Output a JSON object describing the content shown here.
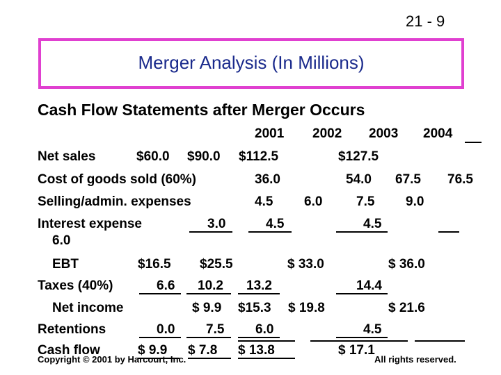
{
  "slide_number": "21 - 9",
  "title": "Merger Analysis (In Millions)",
  "subtitle": "Cash Flow Statements after Merger Occurs",
  "header_years": [
    "2001",
    "2002",
    "2003",
    "2004"
  ],
  "rows": [
    {
      "label": "Net sales",
      "values": [
        "$60.0",
        "$90.0",
        "$112.5",
        "$127.5"
      ]
    },
    {
      "label": "Cost of goods sold (60%)",
      "values": [
        "36.0",
        "54.0",
        "67.5",
        "76.5"
      ]
    },
    {
      "label": "Selling/admin. expenses",
      "values": [
        "4.5",
        "6.0",
        "7.5",
        "9.0"
      ]
    },
    {
      "label": "Interest expense",
      "values": [
        "3.0",
        "4.5",
        "4.5",
        "6.0"
      ]
    },
    {
      "label": "EBT",
      "values": [
        "$16.5",
        "$25.5",
        "$ 33.0",
        "$ 36.0"
      ]
    },
    {
      "label": "Taxes (40%)",
      "values": [
        "6.6",
        "10.2",
        "13.2",
        "14.4"
      ]
    },
    {
      "label": "Net income",
      "values": [
        "$ 9.9",
        "$15.3",
        "$ 19.8",
        "$ 21.6"
      ]
    },
    {
      "label": "Retentions",
      "values": [
        "0.0",
        "7.5",
        "6.0",
        "4.5"
      ]
    },
    {
      "label": "Cash flow",
      "values": [
        "$ 9.9",
        "$ 7.8",
        "$ 13.8",
        "$ 17.1"
      ]
    }
  ],
  "footer": {
    "copyright": "Copyright © 2001 by Harcourt, Inc.",
    "rights": "All rights reserved."
  }
}
